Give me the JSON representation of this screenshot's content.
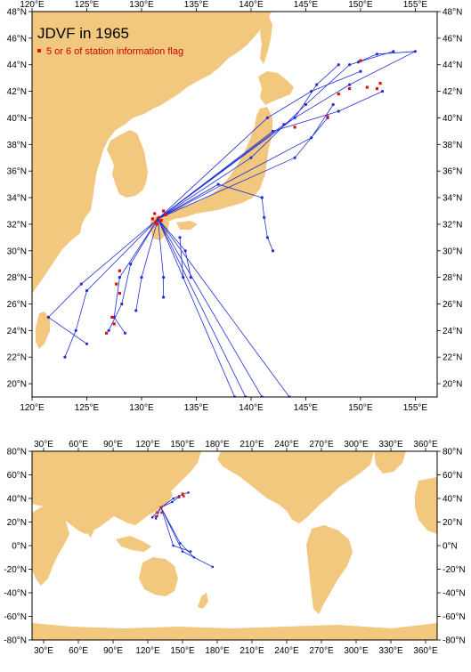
{
  "regional_map": {
    "title": "JDVF in 1965",
    "legend_label": "5 or 6 of station information flag",
    "lon_labels": [
      "120°E",
      "125°E",
      "130°E",
      "135°E",
      "140°E",
      "145°E",
      "150°E",
      "155°E"
    ],
    "lat_labels": [
      "20°N",
      "22°N",
      "24°N",
      "26°N",
      "28°N",
      "30°N",
      "32°N",
      "34°N",
      "36°N",
      "38°N",
      "40°N",
      "42°N",
      "44°N",
      "46°N",
      "48°N"
    ]
  },
  "global_map": {
    "lon_labels": [
      "30°E",
      "60°E",
      "90°E",
      "120°E",
      "150°E",
      "180°E",
      "210°E",
      "240°E",
      "270°E",
      "300°E",
      "330°E",
      "360°E"
    ],
    "lat_labels": [
      "-80°N",
      "-60°N",
      "-40°N",
      "-20°N",
      "0°N",
      "20°N",
      "40°N",
      "60°N",
      "80°N"
    ]
  },
  "colors": {
    "land": "#f2c77e",
    "track": "#1f2fd6",
    "flag": "#e01010"
  },
  "chart_data": [
    {
      "type": "map",
      "extent": {
        "lon": [
          120,
          157
        ],
        "lat": [
          19,
          48
        ]
      },
      "tracks": [
        [
          [
            131.5,
            32.4
          ],
          [
            140.0,
            37.0
          ],
          [
            145.0,
            41.0
          ],
          [
            149.0,
            44.0
          ],
          [
            153.0,
            45.0
          ]
        ],
        [
          [
            131.5,
            32.4
          ],
          [
            141.5,
            40.0
          ],
          [
            145.5,
            42.0
          ],
          [
            150.0,
            43.5
          ]
        ],
        [
          [
            131.5,
            32.4
          ],
          [
            142.0,
            39.0
          ],
          [
            148.0,
            40.5
          ],
          [
            152.0,
            42.0
          ]
        ],
        [
          [
            131.5,
            32.4
          ],
          [
            144.0,
            40.0
          ],
          [
            146.0,
            42.5
          ],
          [
            148.0,
            44.0
          ]
        ],
        [
          [
            131.5,
            32.4
          ],
          [
            145.5,
            38.5
          ],
          [
            147.5,
            41.0
          ]
        ],
        [
          [
            131.5,
            32.4
          ],
          [
            144.0,
            37.0
          ],
          [
            147.0,
            40.0
          ]
        ],
        [
          [
            131.5,
            32.4
          ],
          [
            143.0,
            39.5
          ],
          [
            149.0,
            42.5
          ],
          [
            155.0,
            45.0
          ],
          [
            151.5,
            44.8
          ],
          [
            149.8,
            44.2
          ]
        ],
        [
          [
            131.5,
            32.4
          ],
          [
            128.0,
            28.0
          ],
          [
            127.5,
            25.0
          ],
          [
            128.5,
            23.8
          ]
        ],
        [
          [
            131.5,
            32.4
          ],
          [
            129.0,
            29.0
          ],
          [
            128.2,
            26.0
          ],
          [
            127.0,
            24.0
          ]
        ],
        [
          [
            131.5,
            32.4
          ],
          [
            125.0,
            27.0
          ],
          [
            124.0,
            24.0
          ],
          [
            123.0,
            22.0
          ]
        ],
        [
          [
            131.5,
            32.4
          ],
          [
            124.5,
            27.5
          ],
          [
            121.5,
            25.0
          ],
          [
            125.0,
            23.0
          ]
        ],
        [
          [
            131.5,
            32.4
          ],
          [
            130.0,
            28.0
          ],
          [
            129.5,
            25.5
          ]
        ],
        [
          [
            131.5,
            32.4
          ],
          [
            132.0,
            28.0
          ],
          [
            132.0,
            26.5
          ]
        ],
        [
          [
            131.5,
            32.4
          ],
          [
            141.0,
            19.0
          ]
        ],
        [
          [
            131.5,
            32.4
          ],
          [
            143.5,
            19.0
          ]
        ],
        [
          [
            131.5,
            32.4
          ],
          [
            139.5,
            19.0
          ]
        ],
        [
          [
            131.5,
            32.4
          ],
          [
            138.5,
            19.0
          ]
        ],
        [
          [
            131.5,
            32.4
          ],
          [
            134.0,
            30.0
          ],
          [
            134.5,
            28.0
          ]
        ],
        [
          [
            133.5,
            31.0
          ],
          [
            133.8,
            28.0
          ]
        ],
        [
          [
            141.0,
            34.0
          ],
          [
            141.2,
            32.5
          ],
          [
            141.5,
            31.0
          ],
          [
            142.0,
            30.0
          ]
        ],
        [
          [
            131.5,
            32.4
          ],
          [
            137.0,
            35.0
          ],
          [
            141.0,
            34.0
          ]
        ]
      ],
      "flags": [
        [
          131.3,
          32.2
        ],
        [
          131.6,
          32.5
        ],
        [
          131.2,
          32.8
        ],
        [
          131.8,
          32.3
        ],
        [
          132.2,
          32.7
        ],
        [
          131.4,
          32.0
        ],
        [
          131.0,
          32.4
        ],
        [
          132.0,
          33.0
        ],
        [
          128.0,
          28.5
        ],
        [
          127.7,
          27.5
        ],
        [
          128.0,
          26.8
        ],
        [
          127.3,
          25.0
        ],
        [
          126.8,
          23.8
        ],
        [
          127.5,
          24.5
        ],
        [
          150.0,
          44.3
        ],
        [
          150.6,
          42.3
        ],
        [
          148.0,
          41.8
        ],
        [
          151.5,
          42.2
        ],
        [
          147.0,
          40.1
        ],
        [
          144.0,
          39.3
        ],
        [
          149.0,
          42.2
        ],
        [
          151.8,
          42.6
        ]
      ],
      "annotations": []
    },
    {
      "type": "map",
      "extent": {
        "lon": [
          20,
          370
        ],
        "lat": [
          -80,
          80
        ]
      },
      "tracks": [
        [
          [
            131.5,
            32.4
          ],
          [
            141.0,
            37.0
          ],
          [
            150.0,
            43.5
          ],
          [
            155.0,
            45.0
          ]
        ],
        [
          [
            131.5,
            32.4
          ],
          [
            142.0,
            40.0
          ],
          [
            147.0,
            42.0
          ]
        ],
        [
          [
            131.5,
            32.4
          ],
          [
            124.0,
            24.0
          ]
        ],
        [
          [
            131.5,
            32.4
          ],
          [
            128.0,
            25.0
          ],
          [
            127.0,
            23.0
          ]
        ],
        [
          [
            131.5,
            32.4
          ],
          [
            142.0,
            0.0
          ],
          [
            157.0,
            -5.0
          ]
        ],
        [
          [
            131.5,
            32.4
          ],
          [
            150.0,
            -5.0
          ],
          [
            176.0,
            -18.0
          ]
        ],
        [
          [
            131.5,
            32.4
          ],
          [
            148.0,
            2.0
          ],
          [
            160.0,
            -10.0
          ]
        ]
      ],
      "flags": [
        [
          131.5,
          32.4
        ],
        [
          128.0,
          28.0
        ],
        [
          127.0,
          24.5
        ],
        [
          150.0,
          44.0
        ],
        [
          147.0,
          41.0
        ],
        [
          151.0,
          42.0
        ],
        [
          132.0,
          28.0
        ]
      ],
      "annotations": []
    }
  ]
}
